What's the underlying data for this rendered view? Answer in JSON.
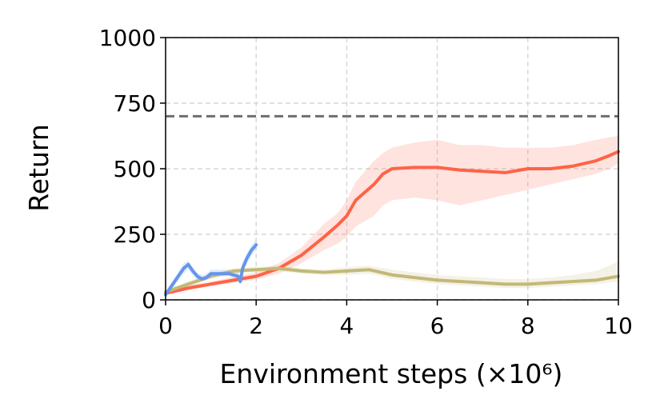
{
  "chart_data": {
    "type": "line",
    "title": "",
    "xlabel": "Environment steps (×10⁶)",
    "ylabel": "Return",
    "xlim": [
      0,
      10
    ],
    "ylim": [
      0,
      1000
    ],
    "xticks": [
      0,
      2,
      4,
      6,
      8,
      10
    ],
    "xtick_labels": [
      "0",
      "2",
      "4",
      "6",
      "8",
      "10"
    ],
    "yticks": [
      0,
      250,
      500,
      750,
      1000
    ],
    "ytick_labels": [
      "0",
      "250",
      "500",
      "750",
      "1000"
    ],
    "grid": true,
    "reference_line": {
      "y": 700,
      "color": "#6e6e6e",
      "style": "dashed"
    },
    "series": [
      {
        "color": "#ff6347",
        "x": [
          0,
          0.5,
          1,
          1.5,
          2,
          2.5,
          3,
          3.5,
          3.8,
          4,
          4.2,
          4.4,
          4.6,
          4.8,
          5,
          5.5,
          6,
          6.5,
          7,
          7.5,
          8,
          8.5,
          9,
          9.5,
          9.8,
          10
        ],
        "y": [
          25,
          45,
          60,
          75,
          90,
          120,
          170,
          240,
          285,
          320,
          380,
          410,
          440,
          480,
          500,
          505,
          505,
          495,
          490,
          485,
          500,
          500,
          510,
          530,
          550,
          565
        ],
        "band_low": [
          18,
          38,
          52,
          65,
          78,
          100,
          140,
          190,
          215,
          240,
          280,
          300,
          320,
          360,
          380,
          390,
          380,
          360,
          380,
          400,
          420,
          440,
          460,
          480,
          500,
          520
        ],
        "band_high": [
          32,
          55,
          70,
          88,
          105,
          140,
          200,
          290,
          330,
          380,
          450,
          490,
          530,
          560,
          580,
          600,
          610,
          590,
          590,
          580,
          580,
          580,
          590,
          610,
          620,
          625
        ]
      },
      {
        "color": "#c2b978",
        "x": [
          0,
          0.5,
          1,
          1.5,
          2,
          2.5,
          3,
          3.5,
          4,
          4.5,
          5,
          5.5,
          6,
          6.5,
          7,
          7.5,
          8,
          8.5,
          9,
          9.5,
          10
        ],
        "y": [
          30,
          60,
          90,
          110,
          115,
          120,
          110,
          105,
          110,
          115,
          95,
          85,
          75,
          70,
          65,
          60,
          60,
          65,
          70,
          75,
          90
        ],
        "band_low": [
          25,
          50,
          80,
          100,
          105,
          110,
          100,
          95,
          95,
          100,
          80,
          70,
          60,
          55,
          50,
          45,
          45,
          50,
          55,
          60,
          70
        ],
        "band_high": [
          35,
          70,
          100,
          120,
          125,
          130,
          120,
          115,
          125,
          130,
          115,
          105,
          95,
          90,
          85,
          80,
          80,
          85,
          95,
          110,
          145
        ]
      },
      {
        "color": "#6495ed",
        "x": [
          0,
          0.2,
          0.4,
          0.5,
          0.6,
          0.7,
          0.8,
          0.9,
          1.0,
          1.2,
          1.4,
          1.5,
          1.6,
          1.65,
          1.7,
          1.8,
          1.9,
          2.0
        ],
        "y": [
          20,
          70,
          120,
          135,
          110,
          90,
          80,
          85,
          100,
          100,
          100,
          95,
          90,
          70,
          120,
          160,
          190,
          210
        ],
        "band_low": [
          15,
          55,
          100,
          115,
          95,
          75,
          70,
          75,
          90,
          90,
          90,
          85,
          75,
          55,
          100,
          140,
          170,
          190
        ],
        "band_high": [
          25,
          85,
          140,
          150,
          125,
          105,
          95,
          100,
          115,
          115,
          115,
          110,
          105,
          90,
          145,
          180,
          210,
          230
        ]
      }
    ]
  }
}
